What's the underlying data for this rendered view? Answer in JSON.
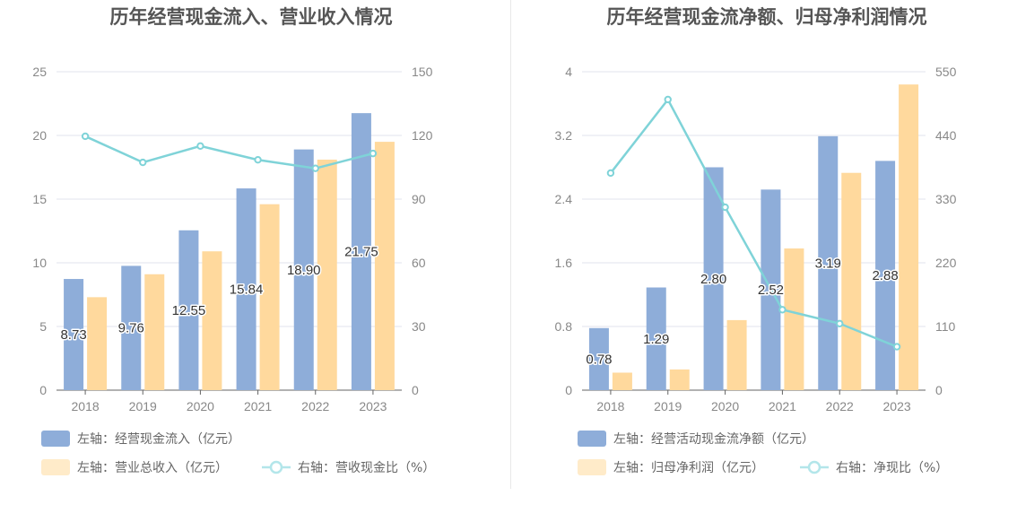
{
  "chart_data": [
    {
      "type": "bar",
      "title": "历年经营现金流入、营业收入情况",
      "categories": [
        "2018",
        "2019",
        "2020",
        "2021",
        "2022",
        "2023"
      ],
      "left_axis": {
        "min": 0,
        "max": 25,
        "ticks": [
          "0",
          "5",
          "10",
          "15",
          "20",
          "25"
        ]
      },
      "right_axis": {
        "min": 0,
        "max": 150,
        "ticks": [
          "0",
          "30",
          "60",
          "90",
          "120",
          "150"
        ]
      },
      "series": [
        {
          "name": "左轴：经营现金流入（亿元）",
          "axis": "left",
          "kind": "bar",
          "color": "#8eadd9",
          "values": [
            8.73,
            9.76,
            12.55,
            15.84,
            18.9,
            21.75
          ],
          "labels": [
            "8.73",
            "9.76",
            "12.55",
            "15.84",
            "18.90",
            "21.75"
          ]
        },
        {
          "name": "左轴：营业总收入（亿元）",
          "axis": "left",
          "kind": "bar",
          "color": "#ffd99d",
          "values": [
            7.3,
            9.1,
            10.9,
            14.6,
            18.1,
            19.5
          ]
        },
        {
          "name": "右轴：营收现金比（%）",
          "axis": "right",
          "kind": "line",
          "color": "#7fd3d8",
          "values": [
            119.6,
            107.3,
            115.0,
            108.5,
            104.5,
            111.5
          ]
        }
      ],
      "legend": "bottom"
    },
    {
      "type": "bar",
      "title": "历年经营现金流净额、归母净利润情况",
      "categories": [
        "2018",
        "2019",
        "2020",
        "2021",
        "2022",
        "2023"
      ],
      "left_axis": {
        "min": 0,
        "max": 4,
        "ticks": [
          "0",
          "0.8",
          "1.6",
          "2.4",
          "3.2",
          "4"
        ]
      },
      "right_axis": {
        "min": 0,
        "max": 550,
        "ticks": [
          "0",
          "110",
          "220",
          "330",
          "440",
          "550"
        ]
      },
      "series": [
        {
          "name": "左轴：经营活动现金流净额（亿元）",
          "axis": "left",
          "kind": "bar",
          "color": "#8eadd9",
          "values": [
            0.78,
            1.29,
            2.8,
            2.52,
            3.19,
            2.88
          ],
          "labels": [
            "0.78",
            "1.29",
            "2.80",
            "2.52",
            "3.19",
            "2.88"
          ]
        },
        {
          "name": "左轴：归母净利润（亿元）",
          "axis": "left",
          "kind": "bar",
          "color": "#ffd99d",
          "values": [
            0.22,
            0.26,
            0.88,
            1.78,
            2.73,
            3.84
          ]
        },
        {
          "name": "右轴：净现比（%）",
          "axis": "right",
          "kind": "line",
          "color": "#7fd3d8",
          "values": [
            375,
            502,
            316,
            139,
            115,
            75
          ]
        }
      ],
      "legend": "bottom"
    }
  ]
}
